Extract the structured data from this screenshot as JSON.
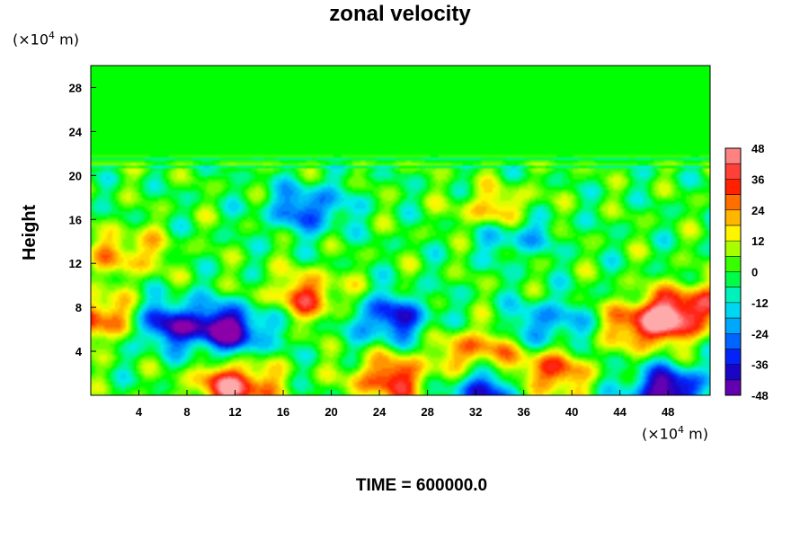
{
  "chart_data": {
    "type": "heatmap",
    "title": "zonal velocity",
    "xlabel": "",
    "ylabel": "Height",
    "x_unit_exp": "4",
    "y_unit_exp": "4",
    "unit_base": "(×10",
    "unit_suffix": " m)",
    "xlim": [
      0,
      51.5
    ],
    "ylim": [
      0,
      30
    ],
    "xticks": [
      4,
      8,
      12,
      16,
      20,
      24,
      28,
      32,
      36,
      40,
      44,
      48
    ],
    "yticks": [
      4,
      8,
      12,
      16,
      20,
      24,
      28
    ],
    "colorbar": {
      "range": [
        -48,
        48
      ],
      "step": 6,
      "ticks": [
        -48,
        -36,
        -24,
        -12,
        0,
        12,
        24,
        36,
        48
      ]
    },
    "features": [
      {
        "x": 11.5,
        "y": 6.0,
        "value": -48
      },
      {
        "x": 6.5,
        "y": 6.5,
        "value": -36
      },
      {
        "x": 25.0,
        "y": 7.0,
        "value": -36
      },
      {
        "x": 33.0,
        "y": 0.5,
        "value": -36
      },
      {
        "x": 38.0,
        "y": 6.5,
        "value": -24
      },
      {
        "x": 48.0,
        "y": 0.5,
        "value": -48
      },
      {
        "x": 46.5,
        "y": 6.5,
        "value": 45
      },
      {
        "x": 50.0,
        "y": 8.0,
        "value": 36
      },
      {
        "x": 12.0,
        "y": 0.8,
        "value": 45
      },
      {
        "x": 0.5,
        "y": 7.0,
        "value": 36
      },
      {
        "x": 18.0,
        "y": 9.0,
        "value": 30
      },
      {
        "x": 32.0,
        "y": 4.0,
        "value": 28
      },
      {
        "x": 38.0,
        "y": 2.0,
        "value": 34
      },
      {
        "x": 25.0,
        "y": 1.5,
        "value": 36
      },
      {
        "x": 18.0,
        "y": 17.0,
        "value": -30
      },
      {
        "x": 35.0,
        "y": 15.0,
        "value": -28
      },
      {
        "x": 3.0,
        "y": 13.0,
        "value": 22
      },
      {
        "x": 34.0,
        "y": 16.5,
        "value": 30
      }
    ],
    "grid": false
  },
  "footer": {
    "time_label": "TIME = 600000.0"
  }
}
